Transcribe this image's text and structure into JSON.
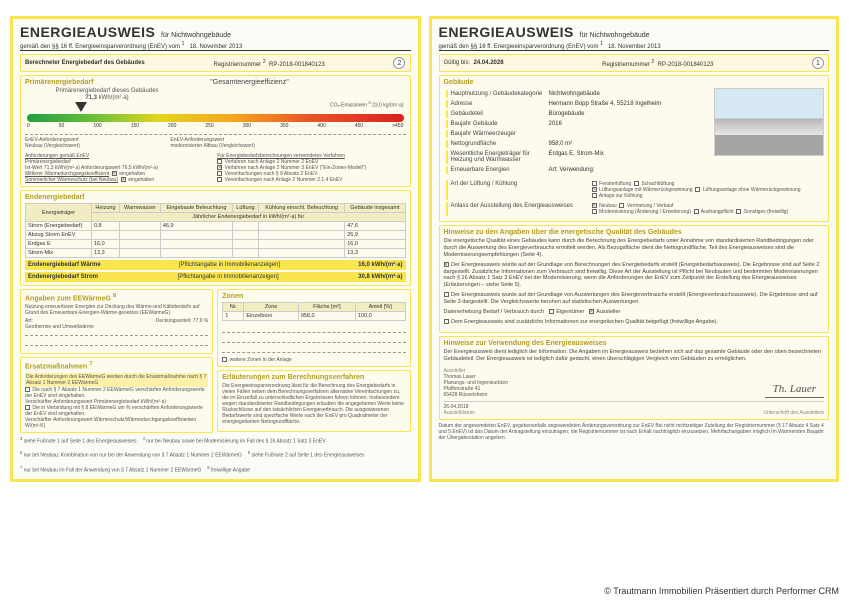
{
  "doc": {
    "title": "ENERGIEAUSWEIS",
    "subtitle": "für Nichtwohngebäude",
    "regulation": "gemäß den §§ 16 ff. Energieeinsparverordnung (EnEV) vom",
    "reg_footnote": "1",
    "reg_date": "18. November 2013"
  },
  "page2": {
    "bar_label": "Berechneter Energiebedarf des Gebäudes",
    "regnum_label": "Registriernummer",
    "regnum_footnote": "2",
    "regnum": "RP-2018-001840123",
    "pagenum": "2",
    "primary_head": "Primärenergiebedarf",
    "efficiency_head": "\"Gesamtenergieeffizienz\"",
    "arrow_label": "Primärenergiebedarf dieses Gebäudes",
    "primary_value": "71,3",
    "primary_unit": "kWh/(m²·a)",
    "co2_label": "CO₂-Emissionen",
    "co2_note": "23,0  kg/(m²·a)",
    "ticks": [
      "0",
      "50",
      "100",
      "150",
      "200",
      "250",
      "300",
      "350",
      "400",
      "450",
      ">450"
    ],
    "left_note_t": "EnEV-Anforderungswert",
    "left_note_b": "Neubau (Vergleichswert)",
    "right_note_t": "EnEV-Anforderungswert",
    "right_note_b": "modernisierter Altbau (Vergleichswert)",
    "anforderungen_head": "Anforderungen gemäß EnEV",
    "verfahren_head": "Für Energiebedarfsberechnungen verwendetes Verfahren",
    "row1_l": "Primärenergiebedarf",
    "row1_v1": "Ist-Wert   71,3  kWh/(m²·a)    Anforderungswert   76,5  kWh/(m²·a)",
    "chk1": "Verfahren nach Anlage 2 Nummer 2 EnEV",
    "chk2": "Verfahren nach Anlage 2 Nummer 3 EnEV (\"Ein-Zonen-Modell\")",
    "row2_l": "Mittlerer Wärmedurchgangskoeffizient",
    "row2_v": "eingehalten",
    "chk3": "Vereinfachungen nach § 9 Absatz 2 EnEV",
    "row3_l": "Sommerlicher Wärmeschutz (bei Neubau)",
    "row3_v": "eingehalten",
    "chk4": "Vereinfachungen nach Anlage 2 Nummer 2.1.4 EnEV",
    "end_head": "Endenergiebedarf",
    "et_head_sub": "Jährlicher Endenergiebedarf in kWh/(m²·a) für",
    "et_cols": [
      "Energieträger",
      "Heizung",
      "Warmwasser",
      "Eingebaute Beleuchtung",
      "Lüftung",
      "Kühlung einschl. Befeuchtung",
      "Gebäude insgesamt"
    ],
    "et_rows": [
      [
        "Strom (Energiebedarf)",
        "0,8",
        "",
        "46,9",
        "",
        "",
        "47,6"
      ],
      [
        "Abzug Strom EnEV",
        "",
        "",
        "",
        "",
        "",
        "26,9"
      ],
      [
        "Erdgas E",
        "16,0",
        "",
        "",
        "",
        "",
        "16,0"
      ],
      [
        "Strom-Mix",
        "13,3",
        "",
        "",
        "",
        "",
        "13,3"
      ]
    ],
    "sum1_l": "Endenergiebedarf Wärme",
    "sum1_m": "[Pflichtangabe in Immobilienanzeigen]",
    "sum1_r": "16,0 kWh/(m²·a)",
    "sum2_l": "Endenergiebedarf Strom",
    "sum2_m": "[Pflichtangabe in Immobilienanzeigen]",
    "sum2_r": "30,8 kWh/(m²·a)",
    "eewarme_head": "Angaben zum EEWärmeG",
    "eewarme_sub": "Nutzung erneuerbarer Energien zur Deckung des Wärme-und Kältebedarfs auf Grund des Erneuerbare-Energien-Wärme-gesetzes (EEWärmeG)",
    "eewarme_art": "Art:",
    "eewarme_da": "Deckungsanteil:  77,9  %",
    "eewarme_art_v": "Geothermie und Umweltwärme",
    "zonen_head": "Zonen",
    "zt_cols": [
      "Nr.",
      "Zone",
      "Fläche [m²]",
      "Anteil [%]"
    ],
    "zt_rows": [
      [
        "1",
        "Einzelbüro",
        "958,0",
        "100,0"
      ]
    ],
    "zt_more": "weitere Zonen in der Anlage",
    "ersatz_head": "Ersatzmaßnahmen",
    "ersatz_sub": "Die Anforderungen des EEWärmeG werden durch die Ersatzmaßnahme nach § 7 Absatz 1 Nummer 2 EEWärmeG",
    "ersatz_c1": "Die nach § 7 Absatz 1 Nummer 2 EEWärmeG verschärfen Anforderungswerte der EnEV sind eingehalten.",
    "ersatz_c2": "Verschärfter Anforderungswert Primärenergiebedarf   kWh/(m²·a)",
    "ersatz_c3": "Die in Verbindung mit § 8 EEWärmeG um   % verschärften Anforderungswerte der EnEV sind eingehalten.",
    "ersatz_c4": "Verschärfter Anforderungswert Wärmeschutz/Wärmedurchgangskoeffizienten   W/(m²·K)",
    "erl_head": "Erläuterungen zum Berechnungsverfahren",
    "erl_body": "Die Energieeinsparverordnung lässt für die Berechnung des Energiebedarfs in vielen Fällen neben dem Berechnungsverfahren alternative Vereinfachungen zu, die im Einzelfall zu unterschiedlichen Ergebnissen führen können. Insbesondere wegen standardisierter Randbedingungen erlauben die angegebenen Werte keine Rückschlüsse auf den tatsächlichen Energieverbrauch. Die ausgewiesenen Bedarfswerte sind spezifische Werte nach der EnEV pro Quadratmeter der energiegeltanten Nettogrundfläche.",
    "foot_a": "siehe Fußnote 1 auf Seite 1 des Energieausweises",
    "foot_b": "nur bei Neubau sowie bei Modernisierung im Fall des § 16 Absatz 1 Satz 3 EnEV",
    "foot_c": "nur bei Neubau; Kombination von nur bei der Anwendung von § 7 Absatz 1 Nummer 2 EEWärmeG",
    "foot_d": "siehe Fußnote 2 auf Seite 1 des Energieausweises",
    "foot_e": "nur bei Neubau im Fall der Anwendung von § 7 Absatz 1 Nummer 2 EEWärmeG",
    "foot_f": "freiwillige Angabe",
    "foot_g": "EFH: Einfamilienhaus, MFH: Mehrfamilienhaus"
  },
  "page1": {
    "valid_label": "Gültig bis:",
    "valid_date": "24.04.2028",
    "regnum_label": "Registriernummer",
    "regnum": "RP-2018-001840123",
    "pagenum": "1",
    "geb_head": "Gebäude",
    "kv": [
      [
        "Hauptnutzung / Gebäudekategorie",
        "Nichtwohngebäude"
      ],
      [
        "Adresse",
        "Hermann Bopp Straße 4, 55218 Ingelheim"
      ],
      [
        "Gebäudeteil",
        "Bürogebäude"
      ],
      [
        "Baujahr Gebäude",
        "2016"
      ],
      [
        "Baujahr Wärmeerzeuger",
        ""
      ],
      [
        "Nettogrundfläche",
        "958,0 m²"
      ],
      [
        "Wesentliche Energieträger für Heizung und Warmwasser",
        "Erdgas E, Strom-Mix"
      ],
      [
        "Erneuerbare Energien",
        "Art:                                       Verwendung:"
      ]
    ],
    "lueft_label": "Art der Lüftung / Kühlung",
    "lueft_opts": [
      "Fensterlüftung",
      "Schachtlüftung",
      "Lüftungsanlage mit Wärmerückgewinnung",
      "Lüftungsanlage ohne Wärmerückgewinnung",
      "Anlage zur Kühlung"
    ],
    "anlass_label": "Anlass der Ausstellung des Energieausweises",
    "anlass_opts": [
      "Neubau",
      "Vermietung / Verkauf",
      "Modernisierung (Änderung / Erweiterung)",
      "Aushangpflicht",
      "Sonstiges (freiwillig)"
    ],
    "hinw_head": "Hinweise zu den Angaben über die energetische Qualität des Gebäudes",
    "hinw_p1": "Die energetische Qualität eines Gebäudes kann durch die Berechnung des Energiebedarfs unter Annahme von standardisierten Randbedingungen oder durch die Auswertung des Energieverbrauchs ermittelt werden. Als Bezugsfläche dient die Nettogrundfläche. Teil des Energieausweises sind die Modernisierungsempfehlungen (Seite 4).",
    "hinw_c1": "Der Energieausweis wurde auf der Grundlage von Berechnungen des Energiebedarfs erstellt (Energiebedarfsausweis). Die Ergebnisse sind auf Seite 2 dargestellt. Zusätzliche Informationen zum Verbrauch sind freiwillig. Diese Art der Ausstellung ist Pflicht bei Neubauten und bestimmten Modernisierungen nach § 16 Absatz 1 Satz 3 EnEV bei der Modernisierung, wenn die Anforderungen der EnEV zum Zeitpunkt der Erstellung des Energieausweises (Erläuterungen – siehe Seite 5).",
    "hinw_c2": "Der Energieausweis wurde auf der Grundlage von Auswertungen des Energieverbrauchs erstellt (Energieverbrauchsausweis). Die Ergebnisse sind auf Seite 3 dargestellt. Die Vergleichswerte beruhen auf statistischen Auswertungen.",
    "data_label": "Datenerhebung Bedarf / Verbrauch durch",
    "data_opt1": "Eigentümer",
    "data_opt2": "Aussteller",
    "hinw_c3": "Dem Energieausweis sind zusätzliche Informationen zur energetischen Qualität beigefügt (freiwillige Angabe).",
    "verw_head": "Hinweise zur Verwendung des Energieausweises",
    "verw_p": "Der Energieausweis dient lediglich der Information. Die Angaben im Energieausweis beziehen sich auf das gesamte Gebäude oder den oben bezeichneten Gebäudeteil. Der Energieausweis ist lediglich dafür gedacht, einen überschlägigen Vergleich von Gebäuden zu ermöglichen.",
    "aussteller_label": "Aussteller",
    "aussteller_name": "Thomas Lauer",
    "aussteller_firm": "Planungs- und Ingenieurbüro",
    "aussteller_addr1": "Pfaffenstraße 41",
    "aussteller_addr2": "65428 Rüsselsheim",
    "sig_date": "26.04.2018",
    "sig_date_label": "Ausstelldatum",
    "sig_right_label": "Unterschrift des Ausstellers",
    "sig_name": "Th. Lauer",
    "foot_p": "Datum der angewendeten EnEV, gegebenenfalls angewendeten Änderungsverordnung zur EnEV   Bei nicht rechtzeitiger Zuteilung der Registriernummer (§ 17 Absatz 4 Satz 4 und 5 EnEV) ist das Datum der Antragstellung einzutragen; die Registriernummer ist nach Erhalt nachträglich einzusetzen.   Mehrfachangaben möglich   Im Wärmersten Baujahr der Übergabestation angeben."
  },
  "credit": "© Trautmann Immobilien Präsentiert durch Performer CRM",
  "colors": {
    "frame": "#f9e550",
    "bg": "#fcfcf7",
    "section_bg": "#fcfbee"
  }
}
